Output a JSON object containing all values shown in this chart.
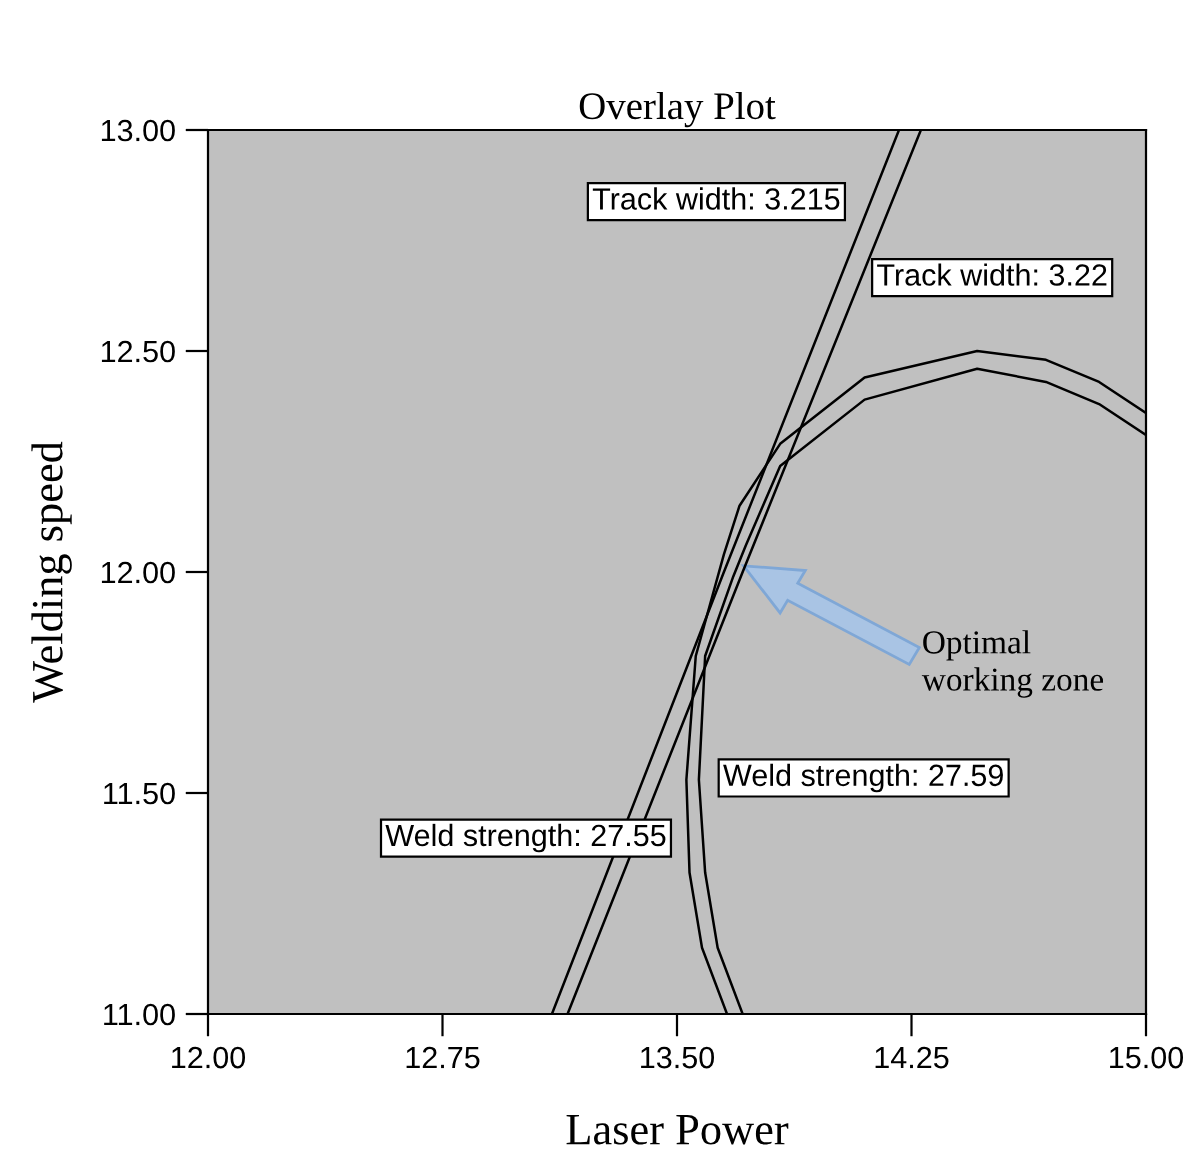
{
  "chart_data": {
    "type": "line",
    "title": "Overlay Plot",
    "xlabel": "Laser Power",
    "ylabel": "Welding speed",
    "xlim": [
      12,
      15
    ],
    "ylim": [
      11,
      13
    ],
    "xticks": [
      {
        "value": 12,
        "label": "12.00"
      },
      {
        "value": 12.75,
        "label": "12.75"
      },
      {
        "value": 13.5,
        "label": "13.50"
      },
      {
        "value": 14.25,
        "label": "14.25"
      },
      {
        "value": 15,
        "label": "15.00"
      }
    ],
    "yticks": [
      {
        "value": 11,
        "label": "11.00"
      },
      {
        "value": 11.5,
        "label": "11.50"
      },
      {
        "value": 12,
        "label": "12.00"
      },
      {
        "value": 12.5,
        "label": "12.50"
      },
      {
        "value": 13,
        "label": "13.00"
      }
    ],
    "grid": false,
    "legend": false,
    "marker": "none",
    "line_style": "solid",
    "series": [
      {
        "color": "#000000",
        "x": [
          13.1,
          13.65,
          14.21
        ],
        "values": [
          11,
          12,
          13
        ]
      },
      {
        "color": "#000000",
        "x": [
          13.15,
          13.71,
          14.28
        ],
        "values": [
          11,
          12,
          13
        ]
      },
      {
        "color": "#000000",
        "x": [
          13.66,
          13.58,
          13.54,
          13.53,
          13.56,
          13.65,
          13.7,
          13.83,
          14.1,
          14.46,
          14.68,
          14.85,
          15
        ],
        "values": [
          11,
          11.15,
          11.32,
          11.53,
          11.81,
          12.04,
          12.15,
          12.29,
          12.44,
          12.5,
          12.48,
          12.43,
          12.36
        ]
      },
      {
        "color": "#000000",
        "x": [
          13.71,
          13.63,
          13.59,
          13.57,
          13.59,
          13.68,
          13.72,
          13.83,
          14.1,
          14.46,
          14.68,
          14.85,
          15
        ],
        "values": [
          11,
          11.15,
          11.32,
          11.53,
          11.81,
          11.99,
          12.06,
          12.24,
          12.39,
          12.46,
          12.43,
          12.38,
          12.31
        ]
      }
    ],
    "annotations": [
      "Track width: 3.215",
      "Track width: 3.22",
      "Weld strength: 27.59",
      "Weld strength: 27.55",
      "Optimal\nworking zone"
    ]
  }
}
